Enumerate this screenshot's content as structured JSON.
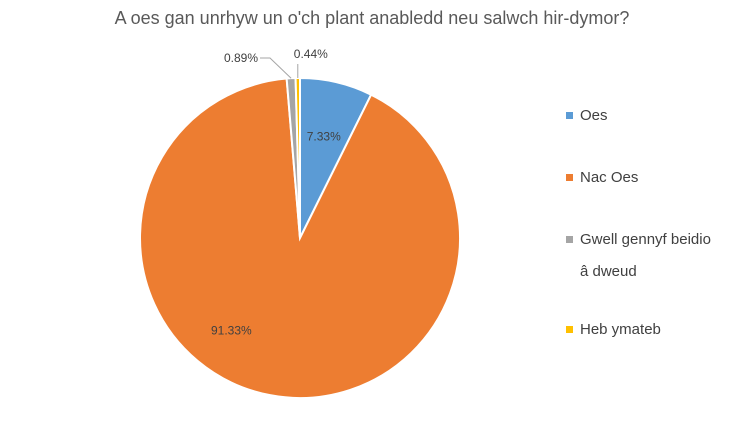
{
  "chart_data": {
    "type": "pie",
    "title": "A oes gan unrhyw un o'ch plant anabledd neu salwch hir-dymor?",
    "categories": [
      "Oes",
      "Nac Oes",
      "Gwell gennyf beidio â dweud",
      "Heb ymateb"
    ],
    "values": [
      7.33,
      91.33,
      0.89,
      0.44
    ],
    "data_labels": [
      "7.33%",
      "91.33%",
      "0.89%",
      "0.44%"
    ],
    "colors": [
      "#5B9BD5",
      "#ED7D31",
      "#A5A5A5",
      "#FFC000"
    ],
    "start_angle_deg": 0,
    "direction": "clockwise",
    "legend_position": "right"
  }
}
